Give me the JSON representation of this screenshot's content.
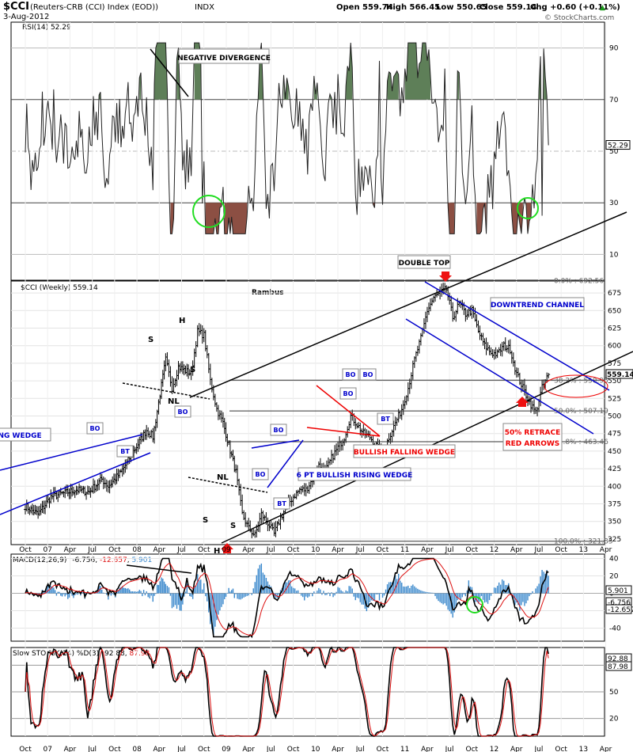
{
  "header": {
    "symbol_title": "$CCI",
    "name_title": "(Reuters-CRB (CCI) Index (EOD))",
    "exchange": "INDX",
    "date": "3-Aug-2012",
    "open": "Open 559.74",
    "high": "High 566.45",
    "low": "Low 550.65",
    "close": "Close 559.14",
    "chg": "Chg +0.60 (+0.11%)",
    "chg_arrow": "▲",
    "watermark": "© StockCharts.com"
  },
  "colors": {
    "rsi_up_fill": "#5e7f58",
    "rsi_down_fill": "#8c4f43",
    "price_bar": "#000000",
    "channel": "#0000cc",
    "wedge_red": "#ee0000",
    "green_circle": "#22dd22",
    "macd_hist": "#3a88cc",
    "signal": "#dd1111",
    "trend": "#000000"
  },
  "x_axis": {
    "labels": [
      "Oct",
      "07",
      "Apr",
      "Jul",
      "Oct",
      "08",
      "Apr",
      "Jul",
      "Oct",
      "09",
      "Apr",
      "Jul",
      "Oct",
      "10",
      "Apr",
      "Jul",
      "Oct",
      "11",
      "Apr",
      "Jul",
      "Oct",
      "12",
      "Apr",
      "Jul",
      "Oct",
      "13",
      "Apr"
    ],
    "start_date": "2006-10",
    "end_date": "2013-04"
  },
  "rsi": {
    "label": "RSI(14) 52.29",
    "current": "52.29",
    "levels": [
      90,
      70,
      50,
      30,
      10
    ],
    "ylim": [
      0,
      100
    ]
  },
  "price": {
    "label": "$CCI (Weekly) 559.14",
    "current": "559.14",
    "ticks": [
      325,
      350,
      375,
      400,
      425,
      450,
      475,
      500,
      525,
      550,
      575,
      600,
      625,
      650,
      675
    ],
    "ylim": [
      317,
      692
    ],
    "author": "Rambus",
    "fib_levels": [
      {
        "label": "0.0% : 692.56",
        "value": 692.56
      },
      {
        "label": "38.2% : 550.95",
        "value": 550.95
      },
      {
        "label": "50.0% : 507.19",
        "value": 507.19
      },
      {
        "label": "61.8% : 463.46",
        "value": 463.46
      },
      {
        "label": "100.0% : 321.85",
        "value": 321.85
      }
    ]
  },
  "annotations": {
    "negative_divergence": "NEGATIVE DIVERGENCE",
    "double_top": "DOUBLE TOP",
    "downtrend_channel": "DOWNTREND CHANNEL",
    "rising_wedge": "RISING WEDGE",
    "bullish_falling_wedge": "BULLISH FALLING WEDGE",
    "bullish_rising_wedge": "6 PT BULLISH RISING WEDGE",
    "retrace_line1": "50% RETRACE",
    "retrace_line2": "RED ARROWS",
    "bo": "BO",
    "bt": "BT",
    "nl": "NL",
    "s": "S",
    "h": "H"
  },
  "macd": {
    "label_prefix": "MACD(12,26,9)",
    "macd_value": "-6.756",
    "signal_value": "-12.657",
    "hist_value": "5.901",
    "ticks": [
      40,
      20,
      0,
      -20,
      -40
    ],
    "ylim": [
      -55,
      45
    ]
  },
  "sto": {
    "label_prefix": "Slow STO %K(14) %D(3)",
    "k_value": "92.88",
    "d_value": "87.98",
    "levels": [
      80,
      50,
      20
    ],
    "ylim": [
      0,
      100
    ]
  },
  "chart_data": {
    "type": "line",
    "title": "$CCI (Reuters-CRB (CCI) Index (EOD)) INDX",
    "x": [
      "2006-10",
      "2007-01",
      "2007-04",
      "2007-07",
      "2007-10",
      "2008-01",
      "2008-04",
      "2008-07",
      "2008-10",
      "2009-01",
      "2009-04",
      "2009-07",
      "2009-10",
      "2010-01",
      "2010-04",
      "2010-07",
      "2010-10",
      "2011-01",
      "2011-04",
      "2011-07",
      "2011-10",
      "2012-01",
      "2012-04",
      "2012-07",
      "2012-08"
    ],
    "series": [
      {
        "name": "$CCI (Weekly)",
        "values": [
          370,
          385,
          395,
          400,
          420,
          460,
          580,
          610,
          500,
          330,
          360,
          385,
          395,
          420,
          415,
          450,
          500,
          600,
          680,
          650,
          620,
          600,
          570,
          540,
          559
        ]
      },
      {
        "name": "RSI(14)",
        "values": [
          48,
          45,
          55,
          62,
          65,
          78,
          90,
          60,
          25,
          40,
          55,
          58,
          60,
          70,
          45,
          55,
          70,
          72,
          68,
          50,
          42,
          45,
          30,
          27,
          52
        ]
      },
      {
        "name": "MACD(12,26,9)",
        "values": [
          0,
          0,
          2,
          3,
          10,
          20,
          32,
          28,
          -10,
          -45,
          -20,
          5,
          10,
          15,
          5,
          10,
          20,
          35,
          35,
          10,
          -5,
          -10,
          -12,
          -18,
          -6.756
        ]
      }
    ],
    "xlabel": "",
    "ylabel": "",
    "ylim": [
      317,
      692
    ]
  }
}
